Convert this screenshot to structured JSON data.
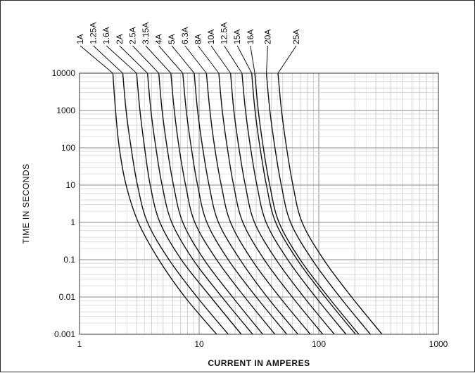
{
  "chart_data": {
    "type": "line",
    "title": "",
    "xlabel": "CURRENT  IN  AMPERES",
    "ylabel": "TIME  IN  SECONDS",
    "xscale": "log",
    "yscale": "log",
    "xlim": [
      1,
      1000
    ],
    "ylim": [
      0.001,
      10000
    ],
    "grid": true,
    "legend": "ratings labeled at top of curves",
    "x_ticks": [
      "1",
      "10",
      "100",
      "1000"
    ],
    "y_ticks": [
      "0.001",
      "0.01",
      "0.1",
      "1",
      "10",
      "100",
      "1000",
      "10000"
    ],
    "series": [
      {
        "name": "1A",
        "points": [
          [
            1.9,
            10000
          ],
          [
            2.0,
            1000
          ],
          [
            2.15,
            100
          ],
          [
            2.45,
            10
          ],
          [
            3.1,
            1
          ],
          [
            4.6,
            0.1
          ],
          [
            7.6,
            0.01
          ],
          [
            14.0,
            0.001
          ]
        ]
      },
      {
        "name": "1.25A",
        "points": [
          [
            2.3,
            10000
          ],
          [
            2.45,
            1000
          ],
          [
            2.7,
            100
          ],
          [
            3.05,
            10
          ],
          [
            3.7,
            1
          ],
          [
            5.6,
            0.1
          ],
          [
            9.6,
            0.01
          ],
          [
            17.5,
            0.001
          ]
        ]
      },
      {
        "name": "1.6A",
        "points": [
          [
            3.0,
            10000
          ],
          [
            3.2,
            1000
          ],
          [
            3.5,
            100
          ],
          [
            3.9,
            10
          ],
          [
            4.7,
            1
          ],
          [
            7.1,
            0.1
          ],
          [
            12.5,
            0.01
          ],
          [
            22.5,
            0.001
          ]
        ]
      },
      {
        "name": "2A",
        "points": [
          [
            3.7,
            10000
          ],
          [
            3.95,
            1000
          ],
          [
            4.35,
            100
          ],
          [
            4.9,
            10
          ],
          [
            5.9,
            1
          ],
          [
            8.9,
            0.1
          ],
          [
            15.5,
            0.01
          ],
          [
            28.0,
            0.001
          ]
        ]
      },
      {
        "name": "2.5A",
        "points": [
          [
            4.6,
            10000
          ],
          [
            4.9,
            1000
          ],
          [
            5.4,
            100
          ],
          [
            6.1,
            10
          ],
          [
            7.3,
            1
          ],
          [
            11.0,
            0.1
          ],
          [
            19.0,
            0.01
          ],
          [
            34.0,
            0.001
          ]
        ]
      },
      {
        "name": "3.15A",
        "points": [
          [
            5.8,
            10000
          ],
          [
            6.2,
            1000
          ],
          [
            6.8,
            100
          ],
          [
            7.7,
            10
          ],
          [
            9.2,
            1
          ],
          [
            14.0,
            0.1
          ],
          [
            24.0,
            0.01
          ],
          [
            43.0,
            0.001
          ]
        ]
      },
      {
        "name": "4A",
        "points": [
          [
            7.3,
            10000
          ],
          [
            7.8,
            1000
          ],
          [
            8.6,
            100
          ],
          [
            9.7,
            10
          ],
          [
            11.6,
            1
          ],
          [
            17.5,
            0.1
          ],
          [
            30.0,
            0.01
          ],
          [
            54.0,
            0.001
          ]
        ]
      },
      {
        "name": "5A",
        "points": [
          [
            9.1,
            10000
          ],
          [
            9.7,
            1000
          ],
          [
            10.7,
            100
          ],
          [
            12.1,
            10
          ],
          [
            14.5,
            1
          ],
          [
            22.0,
            0.1
          ],
          [
            37.0,
            0.01
          ],
          [
            67.0,
            0.001
          ]
        ]
      },
      {
        "name": "6.3A",
        "points": [
          [
            11.5,
            10000
          ],
          [
            12.3,
            1000
          ],
          [
            13.5,
            100
          ],
          [
            15.3,
            10
          ],
          [
            18.3,
            1
          ],
          [
            27.5,
            0.1
          ],
          [
            47.0,
            0.01
          ],
          [
            85.0,
            0.001
          ]
        ]
      },
      {
        "name": "8A",
        "points": [
          [
            14.6,
            10000
          ],
          [
            15.6,
            1000
          ],
          [
            17.2,
            100
          ],
          [
            19.4,
            10
          ],
          [
            23.2,
            1
          ],
          [
            35.0,
            0.1
          ],
          [
            60.0,
            0.01
          ],
          [
            108.0,
            0.001
          ]
        ]
      },
      {
        "name": "10A",
        "points": [
          [
            18.3,
            10000
          ],
          [
            19.5,
            1000
          ],
          [
            21.5,
            100
          ],
          [
            24.3,
            10
          ],
          [
            29.0,
            1
          ],
          [
            44.0,
            0.1
          ],
          [
            75.0,
            0.01
          ],
          [
            135.0,
            0.001
          ]
        ]
      },
      {
        "name": "12.5A",
        "points": [
          [
            22.8,
            10000
          ],
          [
            24.4,
            1000
          ],
          [
            26.9,
            100
          ],
          [
            30.4,
            10
          ],
          [
            36.3,
            1
          ],
          [
            55.0,
            0.1
          ],
          [
            94.0,
            0.01
          ],
          [
            169.0,
            0.001
          ]
        ]
      },
      {
        "name": "15A",
        "points": [
          [
            27.5,
            10000
          ],
          [
            29.3,
            1000
          ],
          [
            32.3,
            100
          ],
          [
            36.5,
            10
          ],
          [
            43.6,
            1
          ],
          [
            66.0,
            0.1
          ],
          [
            113.0,
            0.01
          ],
          [
            203.0,
            0.001
          ]
        ]
      },
      {
        "name": "16A",
        "points": [
          [
            29.2,
            10000
          ],
          [
            31.2,
            1000
          ],
          [
            34.4,
            100
          ],
          [
            38.9,
            10
          ],
          [
            46.5,
            1
          ],
          [
            70.0,
            0.1
          ],
          [
            120.0,
            0.01
          ],
          [
            216.0,
            0.001
          ]
        ]
      },
      {
        "name": "20A",
        "points": [
          [
            36.5,
            10000
          ],
          [
            39.0,
            1000
          ],
          [
            43.0,
            100
          ],
          [
            48.6,
            10
          ],
          [
            58.1,
            1
          ],
          [
            88.0,
            0.1
          ],
          [
            150.0,
            0.01
          ],
          [
            270.0,
            0.001
          ]
        ]
      },
      {
        "name": "25A",
        "points": [
          [
            45.6,
            10000
          ],
          [
            48.8,
            1000
          ],
          [
            53.8,
            100
          ],
          [
            60.8,
            10
          ],
          [
            72.6,
            1
          ],
          [
            110.0,
            0.1
          ],
          [
            188.0,
            0.01
          ],
          [
            338.0,
            0.001
          ]
        ]
      }
    ]
  }
}
